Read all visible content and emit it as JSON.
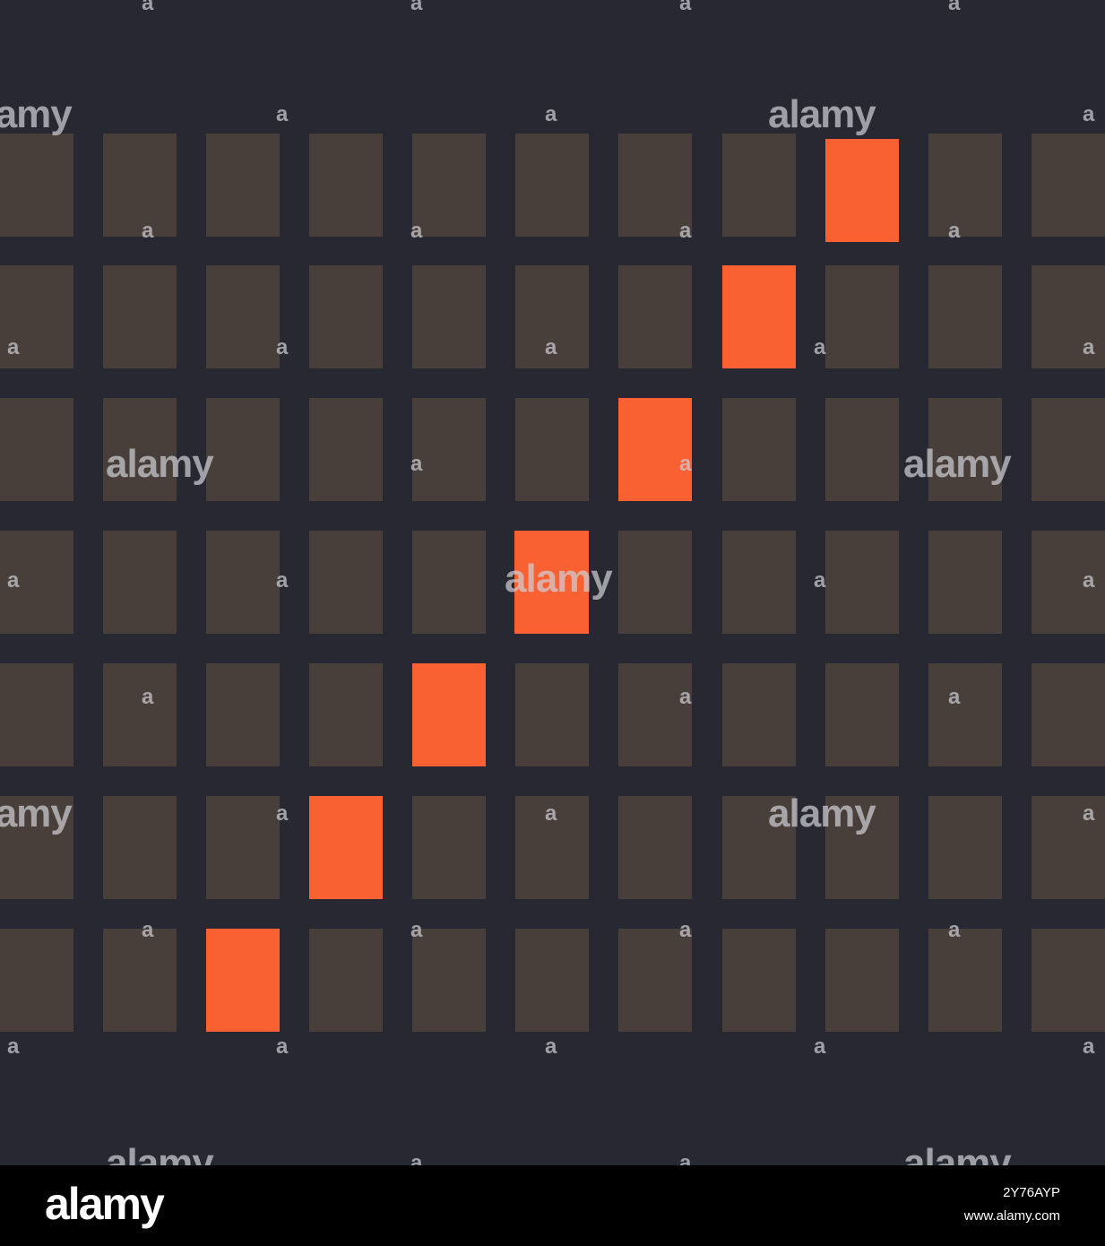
{
  "grid": {
    "rows": 7,
    "columns": 11,
    "highlighted_cells": [
      {
        "row": 0,
        "col": 8
      },
      {
        "row": 1,
        "col": 7
      },
      {
        "row": 2,
        "col": 6
      },
      {
        "row": 3,
        "col": 5
      },
      {
        "row": 4,
        "col": 4
      },
      {
        "row": 5,
        "col": 3
      },
      {
        "row": 6,
        "col": 2
      }
    ],
    "colors": {
      "background": "#282832",
      "cell": "#483f3a",
      "highlight": "#f96133"
    }
  },
  "watermark": {
    "brand": "alamy",
    "glyph": "a"
  },
  "footer": {
    "logo": "alamy",
    "image_id": "2Y76AYP",
    "url": "www.alamy.com",
    "background": "#000000",
    "text_color": "#ffffff"
  }
}
